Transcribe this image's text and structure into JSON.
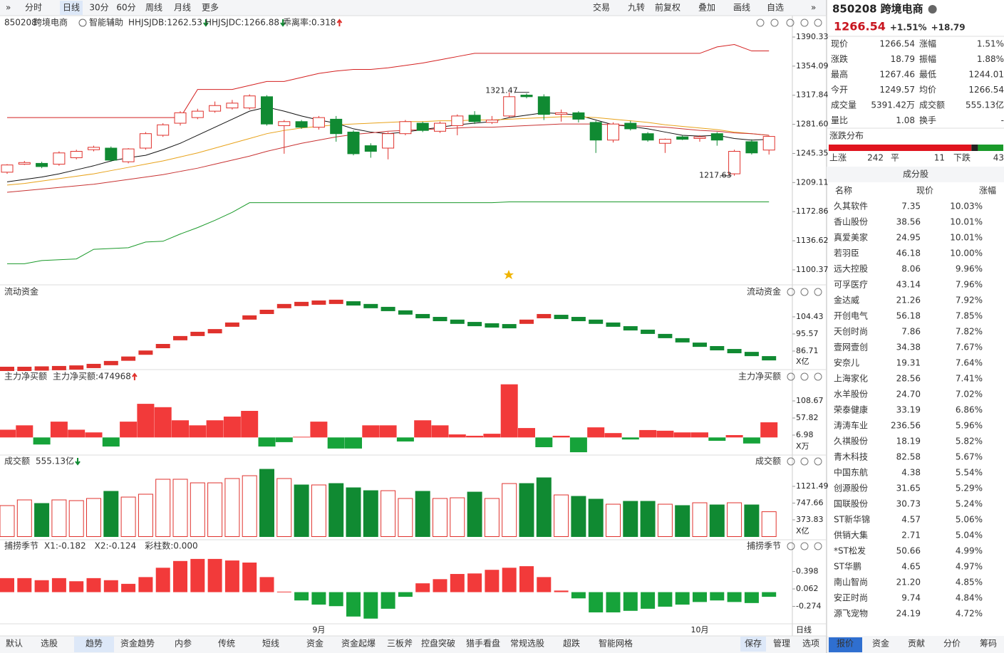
{
  "toolbar": {
    "periods": [
      "分时",
      "日线",
      "30分",
      "60分",
      "周线",
      "月线",
      "更多"
    ],
    "active_period": 1,
    "tools": [
      "交易",
      "九转",
      "前复权",
      "叠加",
      "画线",
      "自选"
    ]
  },
  "main": {
    "code": "850208",
    "name": "跨境电商",
    "assist": "智能辅助",
    "indicators": [
      {
        "label": "HHJSJDB:1262.53",
        "color": "#d98a0a",
        "dir": "down"
      },
      {
        "label": "HHJSJDC:1266.88",
        "color": "#e0322d",
        "dir": "down"
      },
      {
        "label": "乖离率:0.318",
        "color": "#d98a0a",
        "dir": "up"
      }
    ],
    "ylim": [
      1083.5,
      1399.2
    ],
    "yticks": [
      1390.33,
      1354.09,
      1317.84,
      {
        "value": 1281.6,
        "label": "1281.60"
      },
      1245.35,
      1209.11,
      1172.86,
      1136.62,
      1100.37
    ],
    "candles": {
      "open": [
        1222,
        1232,
        1233,
        1232,
        1240,
        1250,
        1252,
        1235,
        1252,
        1268,
        1283,
        1290,
        1298,
        1302,
        1302,
        1316,
        1280,
        1285,
        1278,
        1288,
        1272,
        1255,
        1252,
        1270,
        1283,
        1273,
        1280,
        1293,
        1284,
        1292,
        1318,
        1316,
        1294,
        1296,
        1284,
        1262,
        1283,
        1270,
        1258,
        1266,
        1264,
        1270,
        1220,
        1260,
        1249.57
      ],
      "close": [
        1231,
        1234,
        1229,
        1246,
        1248,
        1253,
        1237,
        1251,
        1270,
        1281,
        1296,
        1298,
        1305,
        1308,
        1317,
        1282,
        1285,
        1278,
        1290,
        1270,
        1245,
        1248,
        1270,
        1285,
        1274,
        1283,
        1292,
        1285,
        1287,
        1316,
        1316,
        1294,
        1296,
        1288,
        1262,
        1282,
        1276,
        1262,
        1263,
        1263,
        1266,
        1262,
        1248,
        1246,
        1266.54
      ],
      "high": [
        1232,
        1236,
        1235,
        1248,
        1250,
        1255,
        1254,
        1252,
        1272,
        1283,
        1298,
        1301,
        1310,
        1312,
        1319,
        1318,
        1287,
        1287,
        1292,
        1292,
        1274,
        1258,
        1272,
        1287,
        1285,
        1285,
        1294,
        1298,
        1292,
        1321.47,
        1320,
        1319,
        1300,
        1298,
        1286,
        1284,
        1286,
        1272,
        1264,
        1268,
        1268,
        1272,
        1250,
        1263,
        1267.46
      ],
      "low": [
        1220,
        1231,
        1227,
        1230,
        1238,
        1248,
        1235,
        1233,
        1250,
        1266,
        1280,
        1288,
        1296,
        1300,
        1300,
        1280,
        1245,
        1276,
        1275,
        1260,
        1243,
        1240,
        1238,
        1268,
        1272,
        1271,
        1268,
        1282,
        1282,
        1290,
        1314,
        1287,
        1285,
        1284,
        1246,
        1259,
        1274,
        1260,
        1246,
        1262,
        1260,
        1255,
        1217.63,
        1244,
        1244.01
      ]
    },
    "lines": [
      {
        "color": "#d42020",
        "values": [
          1290,
          1290,
          1290,
          1290,
          1290,
          1290,
          1290,
          1290,
          1290,
          1290,
          1290,
          1325,
          1325,
          1325,
          1330,
          1335,
          1335,
          1340,
          1345,
          1348,
          1350,
          1350,
          1352,
          1355,
          1358,
          1362,
          1366,
          1370,
          1370,
          1370,
          1370,
          1370,
          1370,
          1370,
          1370,
          1370,
          1370,
          1370,
          1370,
          1370,
          1370,
          1378,
          1381,
          1373,
          1373
        ]
      },
      {
        "color": "#1a9a2a",
        "values": [
          1108,
          1108,
          1112,
          1113,
          1114,
          1126,
          1127,
          1128,
          1135,
          1136,
          1145,
          1153,
          1162,
          1172,
          1184,
          1184,
          1184,
          1184,
          1184,
          1184,
          1184,
          1184,
          1184,
          1184,
          1184,
          1184,
          1184,
          1184,
          1184,
          1185,
          1185,
          1185,
          1185,
          1185,
          1185,
          1185,
          1185,
          1185,
          1185,
          1185,
          1185,
          1185,
          1185,
          1185,
          1185
        ]
      },
      {
        "color": "#111111",
        "values": [
          1210,
          1213,
          1216,
          1220,
          1225,
          1230,
          1236,
          1240,
          1243,
          1250,
          1258,
          1268,
          1278,
          1288,
          1298,
          1303,
          1298,
          1292,
          1287,
          1283,
          1276,
          1272,
          1270,
          1272,
          1275,
          1278,
          1281,
          1283,
          1285,
          1290,
          1293,
          1296,
          1295,
          1293,
          1287,
          1281,
          1279,
          1276,
          1272,
          1268,
          1267,
          1268,
          1264,
          1262,
          1263
        ]
      },
      {
        "color": "#e8a21a",
        "values": [
          1206,
          1208,
          1211,
          1214,
          1217,
          1220,
          1224,
          1228,
          1232,
          1236,
          1241,
          1246,
          1252,
          1258,
          1264,
          1270,
          1274,
          1277,
          1279,
          1281,
          1282,
          1283,
          1284,
          1285,
          1285,
          1286,
          1286,
          1287,
          1287,
          1288,
          1289,
          1290,
          1291,
          1291,
          1290,
          1288,
          1286,
          1284,
          1281,
          1279,
          1277,
          1275,
          1272,
          1270,
          1268
        ]
      },
      {
        "color": "#c83232",
        "values": [
          1197,
          1199,
          1201,
          1203,
          1205,
          1207,
          1210,
          1213,
          1216,
          1219,
          1223,
          1227,
          1232,
          1237,
          1242,
          1248,
          1253,
          1258,
          1262,
          1266,
          1269,
          1271,
          1273,
          1274,
          1275,
          1276,
          1277,
          1278,
          1278,
          1279,
          1280,
          1281,
          1282,
          1282,
          1282,
          1281,
          1280,
          1279,
          1278,
          1276,
          1274,
          1273,
          1271,
          1270,
          1268
        ]
      }
    ],
    "dates": [
      null,
      null,
      null,
      null,
      null,
      null,
      null,
      null,
      null,
      null,
      null,
      null,
      null,
      null,
      null,
      null,
      null,
      null,
      "9月",
      null,
      null,
      null,
      null,
      null,
      null,
      null,
      null,
      null,
      null,
      null,
      null,
      null,
      null,
      null,
      null,
      null,
      null,
      null,
      null,
      null,
      "10月",
      null,
      null,
      null,
      null
    ],
    "period": "日线"
  },
  "flow": {
    "title": "流动资金",
    "unit": "X亿",
    "ylim": [
      77.5,
      115.1
    ],
    "yticks": [
      104.43,
      95.57,
      86.71
    ],
    "values": [
      78.6,
      78.6,
      78.8,
      79.0,
      79.3,
      80.1,
      81.6,
      83.9,
      87.0,
      90.4,
      94.5,
      96.7,
      98.1,
      101.5,
      105.2,
      108.1,
      111.1,
      112.2,
      112.9,
      113.3,
      112.5,
      111.1,
      109.6,
      107.8,
      105.9,
      104.4,
      103.0,
      101.8,
      101.1,
      100.7,
      103.0,
      105.9,
      105.5,
      104.4,
      103.0,
      101.5,
      99.6,
      97.8,
      95.6,
      93.4,
      91.1,
      89.3,
      87.8,
      86.3,
      84.1
    ]
  },
  "netbuy": {
    "title": "主力净买额",
    "value_label": "主力净买额:474968",
    "unit": "X万",
    "ylim": [
      -50.2,
      161.6
    ],
    "yticks": [
      108.67,
      57.82,
      6.98
    ],
    "values": [
      23,
      36,
      -21,
      47,
      23,
      15,
      -27,
      47,
      100,
      90,
      51,
      36,
      51,
      62,
      79,
      -27,
      -14,
      2,
      47,
      -33,
      -33,
      36,
      36,
      -12,
      51,
      36,
      9,
      5,
      11,
      158,
      28,
      -29,
      5,
      -44,
      30,
      13,
      -6,
      22,
      20,
      15,
      15,
      -10,
      7,
      -18,
      45
    ]
  },
  "volume": {
    "title": "成交额",
    "value_label": "555.13亿",
    "unit": "X亿",
    "ylim": [
      -55.4,
      1534.4
    ],
    "yticks": [
      1121.49,
      747.66,
      373.83
    ],
    "values": [
      692,
      819,
      739,
      819,
      803,
      851,
      1010,
      882,
      946,
      1280,
      1280,
      1200,
      1200,
      1296,
      1359,
      1502,
      1296,
      1153,
      1153,
      1184,
      1089,
      1025,
      1025,
      851,
      1010,
      851,
      866,
      993,
      851,
      1184,
      1184,
      1312,
      930,
      898,
      835,
      723,
      787,
      787,
      723,
      692,
      755,
      707,
      755,
      707,
      555.13
    ]
  },
  "capture": {
    "title": "捕捞季节",
    "legend": [
      {
        "label": "X1:-0.182",
        "color": "#e0322d"
      },
      {
        "label": "X2:-0.124",
        "color": "#d01ad0"
      },
      {
        "label": "彩柱数:0.000",
        "color": "#1a9a2a"
      }
    ],
    "ylim": [
      -0.61,
      0.762
    ],
    "yticks": [
      0.398,
      0.062,
      -0.274
    ],
    "values": [
      0.27,
      0.27,
      0.23,
      0.27,
      0.21,
      0.27,
      0.23,
      0.16,
      0.29,
      0.47,
      0.6,
      0.64,
      0.64,
      0.61,
      0.57,
      0.29,
      0.01,
      -0.16,
      -0.24,
      -0.27,
      -0.47,
      -0.51,
      -0.32,
      -0.09,
      0.17,
      0.25,
      0.35,
      0.36,
      0.43,
      0.47,
      0.5,
      0.29,
      0.03,
      -0.12,
      -0.39,
      -0.39,
      -0.36,
      -0.32,
      -0.28,
      -0.24,
      -0.19,
      -0.16,
      -0.19,
      -0.21,
      -0.09
    ]
  },
  "bottom_tabs": {
    "items": [
      "默认",
      "选股",
      "趋势",
      "资金趋势",
      "内参",
      "传统",
      "短线",
      "资金",
      "资金起爆",
      "三板斧",
      "控盘突破",
      "猎手看盘",
      "常规选股",
      "超跌",
      "智能网格"
    ],
    "active": 2,
    "right": [
      "保存",
      "管理",
      "选项"
    ]
  },
  "quote": {
    "code": "850208",
    "name": "跨境电商",
    "price": "1266.54",
    "pct": "+1.51%",
    "chg": "+18.79",
    "rows": [
      {
        "cells": [
          "现价",
          "1266.54",
          "涨幅",
          "1.51%"
        ],
        "colors": [
          "#c8141e",
          "#c8141e"
        ]
      },
      {
        "cells": [
          "涨跌",
          "18.79",
          "振幅",
          "1.88%"
        ],
        "colors": [
          "#c8141e",
          "#222"
        ]
      },
      {
        "cells": [
          "最高",
          "1267.46",
          "最低",
          "1244.01"
        ],
        "colors": [
          "#c8141e",
          "#1a9a2a"
        ]
      },
      {
        "cells": [
          "今开",
          "1249.57",
          "均价",
          "1266.54"
        ],
        "colors": [
          "#c8141e",
          "#c8141e"
        ]
      },
      {
        "cells": [
          "成交量",
          "5391.42万",
          "成交额",
          "555.13亿"
        ],
        "colors": [
          "#222",
          "#222"
        ]
      },
      {
        "cells": [
          "量比",
          "1.08",
          "换手",
          "-"
        ],
        "colors": [
          "#222",
          "#222"
        ]
      }
    ],
    "dist": {
      "title": "涨跌分布",
      "up_label": "上涨",
      "up": 242,
      "flat_label": "平",
      "flat": 11,
      "down_label": "下跌",
      "down": 43
    },
    "constituents": {
      "title": "成分股",
      "headers": [
        "名称",
        "现价",
        "涨幅"
      ],
      "rows": [
        {
          "name": "久其软件",
          "price": "7.35",
          "pct": "10.03%",
          "color": "#2a6fd6"
        },
        {
          "name": "香山股份",
          "price": "38.56",
          "pct": "10.01%",
          "color": "#d01a8a"
        },
        {
          "name": "真爱美家",
          "price": "24.95",
          "pct": "10.01%",
          "color": "#222"
        },
        {
          "name": "若羽臣",
          "price": "46.18",
          "pct": "10.00%",
          "color": "#222"
        },
        {
          "name": "远大控股",
          "price": "8.06",
          "pct": "9.96%",
          "color": "#2a6fd6"
        },
        {
          "name": "可孚医疗",
          "price": "43.14",
          "pct": "7.96%",
          "color": "#222"
        },
        {
          "name": "金达威",
          "price": "21.26",
          "pct": "7.92%",
          "color": "#222"
        },
        {
          "name": "开创电气",
          "price": "56.18",
          "pct": "7.85%",
          "color": "#222"
        },
        {
          "name": "天创时尚",
          "price": "7.86",
          "pct": "7.82%",
          "color": "#d01a8a"
        },
        {
          "name": "壹网壹创",
          "price": "34.38",
          "pct": "7.67%",
          "color": "#222"
        },
        {
          "name": "安奈儿",
          "price": "19.31",
          "pct": "7.64%",
          "color": "#d01a8a"
        },
        {
          "name": "上海家化",
          "price": "28.56",
          "pct": "7.41%",
          "color": "#222"
        },
        {
          "name": "水羊股份",
          "price": "24.70",
          "pct": "7.02%",
          "color": "#222"
        },
        {
          "name": "荣泰健康",
          "price": "33.19",
          "pct": "6.86%",
          "color": "#222"
        },
        {
          "name": "涛涛车业",
          "price": "236.56",
          "pct": "5.96%",
          "color": "#222"
        },
        {
          "name": "久祺股份",
          "price": "18.19",
          "pct": "5.82%",
          "color": "#222"
        },
        {
          "name": "青木科技",
          "price": "82.58",
          "pct": "5.67%",
          "color": "#2a6fd6"
        },
        {
          "name": "中国东航",
          "price": "4.38",
          "pct": "5.54%",
          "color": "#222"
        },
        {
          "name": "创源股份",
          "price": "31.65",
          "pct": "5.29%",
          "color": "#222"
        },
        {
          "name": "国联股份",
          "price": "30.73",
          "pct": "5.24%",
          "color": "#222"
        },
        {
          "name": "ST新华锦",
          "price": "4.57",
          "pct": "5.06%",
          "color": "#222"
        },
        {
          "name": "供销大集",
          "price": "2.71",
          "pct": "5.04%",
          "color": "#222"
        },
        {
          "name": "*ST松发",
          "price": "50.66",
          "pct": "4.99%",
          "color": "#d01a8a"
        },
        {
          "name": "ST华鹏",
          "price": "4.65",
          "pct": "4.97%",
          "color": "#d01a8a"
        },
        {
          "name": "南山智尚",
          "price": "21.20",
          "pct": "4.85%",
          "color": "#222"
        },
        {
          "name": "安正时尚",
          "price": "9.74",
          "pct": "4.84%",
          "color": "#222"
        },
        {
          "name": "源飞宠物",
          "price": "24.19",
          "pct": "4.72%",
          "color": "#222"
        }
      ]
    },
    "tabs": [
      "报价",
      "资金",
      "贡献",
      "分价",
      "筹码"
    ],
    "active_tab": 0
  }
}
